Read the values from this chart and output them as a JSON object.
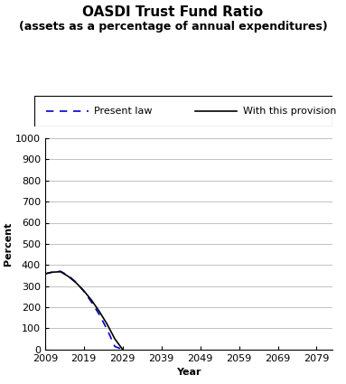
{
  "title_line1": "OASDI Trust Fund Ratio",
  "title_line2": "(assets as a percentage of annual expenditures)",
  "xlabel": "Year",
  "ylabel": "Percent",
  "ylim": [
    0,
    1000
  ],
  "yticks": [
    0,
    100,
    200,
    300,
    400,
    500,
    600,
    700,
    800,
    900,
    1000
  ],
  "xticks": [
    2009,
    2019,
    2029,
    2039,
    2049,
    2059,
    2069,
    2079
  ],
  "xlim": [
    2009,
    2083
  ],
  "present_law_x": [
    2009,
    2011,
    2013,
    2015,
    2017,
    2019,
    2021,
    2023,
    2025,
    2027,
    2029,
    2031,
    2033
  ],
  "present_law_y": [
    358,
    367,
    370,
    350,
    318,
    276,
    224,
    165,
    95,
    14,
    0,
    0,
    0
  ],
  "present_law_zero_x": 2033.0,
  "provision_x": [
    2009,
    2011,
    2013,
    2015,
    2017,
    2019,
    2021,
    2023,
    2025,
    2027,
    2029,
    2031,
    2033,
    2035,
    2037,
    2039,
    2041,
    2043,
    2045,
    2047,
    2049,
    2051,
    2053,
    2055,
    2057
  ],
  "provision_y": [
    358,
    366,
    368,
    346,
    316,
    278,
    233,
    180,
    120,
    50,
    0,
    0,
    0,
    0,
    0,
    0,
    0,
    0,
    0,
    0,
    0,
    0,
    0,
    0,
    0
  ],
  "pl_color": "#0000cc",
  "pv_color": "#000000",
  "bg_color": "#ffffff",
  "legend_pl": "Present law",
  "legend_pv": "With this provision",
  "title_fontsize": 11,
  "subtitle_fontsize": 9,
  "axis_label_fontsize": 8,
  "tick_fontsize": 8,
  "legend_fontsize": 8
}
